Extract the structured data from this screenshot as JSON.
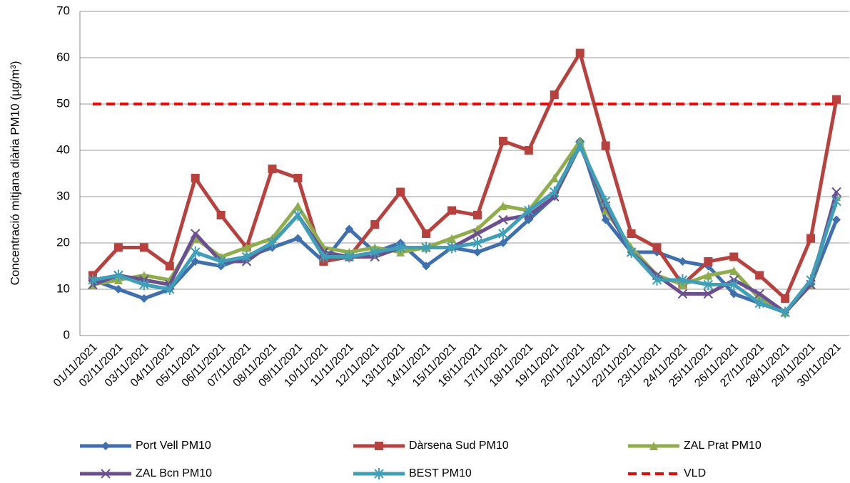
{
  "chart_data": {
    "type": "line",
    "y_label": "Concentració mitjana diària PM10 (µg/m³)",
    "categories": [
      "01/11/2021",
      "02/11/2021",
      "03/11/2021",
      "04/11/2021",
      "05/11/2021",
      "06/11/2021",
      "07/11/2021",
      "08/11/2021",
      "09/11/2021",
      "10/11/2021",
      "11/11/2021",
      "12/11/2021",
      "13/11/2021",
      "14/11/2021",
      "15/11/2021",
      "16/11/2021",
      "17/11/2021",
      "18/11/2021",
      "19/11/2021",
      "20/11/2021",
      "21/11/2021",
      "22/11/2021",
      "23/11/2021",
      "24/11/2021",
      "25/11/2021",
      "26/11/2021",
      "27/11/2021",
      "28/11/2021",
      "29/11/2021",
      "30/11/2021"
    ],
    "series": [
      {
        "name": "Port Vell PM10",
        "color": "#3e6fb0",
        "marker": "diamond",
        "values": [
          12,
          10,
          8,
          10,
          16,
          15,
          17,
          19,
          21,
          16,
          23,
          18,
          20,
          15,
          19,
          18,
          20,
          25,
          30,
          42,
          25,
          18,
          18,
          16,
          15,
          9,
          7,
          5,
          11,
          25
        ]
      },
      {
        "name": "Dàrsena Sud PM10",
        "color": "#b8413e",
        "marker": "square",
        "values": [
          13,
          19,
          19,
          15,
          34,
          26,
          19,
          36,
          34,
          16,
          17,
          24,
          31,
          22,
          27,
          26,
          42,
          40,
          52,
          61,
          41,
          22,
          19,
          11,
          16,
          17,
          13,
          8,
          21,
          51
        ]
      },
      {
        "name": "ZAL Prat PM10",
        "color": "#8fae4a",
        "marker": "triangle",
        "values": [
          11,
          12,
          13,
          12,
          21,
          17,
          19,
          21,
          28,
          19,
          18,
          19,
          18,
          19,
          21,
          23,
          28,
          27,
          34,
          42,
          27,
          19,
          13,
          11,
          13,
          14,
          8,
          5,
          11,
          30
        ]
      },
      {
        "name": "ZAL Bcn PM10",
        "color": "#6c4f91",
        "marker": "x",
        "values": [
          11,
          13,
          12,
          11,
          22,
          16,
          16,
          20,
          26,
          18,
          17,
          17,
          19,
          19,
          19,
          22,
          25,
          26,
          30,
          41,
          28,
          18,
          13,
          9,
          9,
          12,
          9,
          5,
          11,
          31
        ]
      },
      {
        "name": "BEST PM10",
        "color": "#3d9fb8",
        "marker": "star",
        "values": [
          12,
          13,
          11,
          10,
          18,
          16,
          17,
          20,
          26,
          17,
          17,
          18,
          19,
          19,
          19,
          20,
          22,
          27,
          31,
          41,
          29,
          18,
          12,
          12,
          11,
          11,
          7,
          5,
          12,
          29
        ]
      },
      {
        "name": "VLD",
        "color": "#ff0000",
        "marker": "none",
        "dashed": true,
        "values": [
          50,
          50,
          50,
          50,
          50,
          50,
          50,
          50,
          50,
          50,
          50,
          50,
          50,
          50,
          50,
          50,
          50,
          50,
          50,
          50,
          50,
          50,
          50,
          50,
          50,
          50,
          50,
          50,
          50,
          50
        ]
      }
    ],
    "ylim": [
      0,
      70
    ],
    "yticks": [
      0,
      10,
      20,
      30,
      40,
      50,
      60,
      70
    ],
    "grid": true
  }
}
